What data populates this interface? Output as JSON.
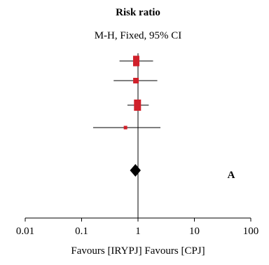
{
  "chart_data": {
    "type": "forest",
    "title": "Risk ratio",
    "subtitle": "M-H, Fixed, 95% CI",
    "xscale": "log",
    "xlim": [
      0.01,
      100
    ],
    "tick_labels": [
      "0.01",
      "0.1",
      "1",
      "10",
      "100"
    ],
    "tick_values": [
      0.01,
      0.1,
      1,
      10,
      100
    ],
    "xlabel": "Favours [IRYPJ] Favours [CPJ]",
    "null_line": 1,
    "studies": [
      {
        "estimate": 0.93,
        "lower": 0.47,
        "upper": 1.85,
        "weight": 3
      },
      {
        "estimate": 0.92,
        "lower": 0.37,
        "upper": 2.2,
        "weight": 2
      },
      {
        "estimate": 0.98,
        "lower": 0.65,
        "upper": 1.55,
        "weight": 4
      },
      {
        "estimate": 0.6,
        "lower": 0.16,
        "upper": 2.5,
        "weight": 1
      }
    ],
    "pooled": {
      "estimate": 0.9,
      "lower": 0.72,
      "upper": 1.12
    },
    "panel_label": "A",
    "colors": {
      "study_box": "#d0202a",
      "pooled": "#000000",
      "lines": "#000000"
    }
  }
}
